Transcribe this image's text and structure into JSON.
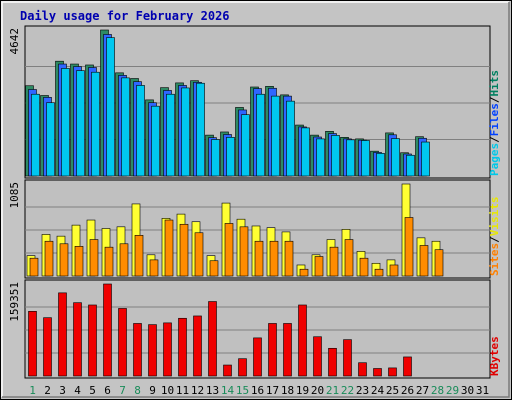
{
  "chart_data": {
    "type": "bar",
    "title": "Daily usage for February 2026",
    "days": [
      "1",
      "2",
      "3",
      "4",
      "5",
      "6",
      "7",
      "8",
      "9",
      "10",
      "11",
      "12",
      "13",
      "14",
      "15",
      "16",
      "17",
      "18",
      "19",
      "20",
      "21",
      "22",
      "23",
      "24",
      "25",
      "26",
      "27",
      "28",
      "29",
      "30",
      "31"
    ],
    "weekend_days": [
      "1",
      "7",
      "8",
      "14",
      "15",
      "21",
      "22",
      "28",
      "29"
    ],
    "panels": [
      {
        "id": "top",
        "max_label": "4642",
        "ylim": [
          0,
          4642
        ],
        "legend": [
          {
            "text": "Pages",
            "color": "#00c8e8"
          },
          {
            "text": "/",
            "color": "#000000"
          },
          {
            "text": "Files",
            "color": "#0040ff"
          },
          {
            "text": "/",
            "color": "#000000"
          },
          {
            "text": "Hits",
            "color": "#008060"
          }
        ],
        "series": [
          {
            "name": "Hits",
            "color": "#2e8b64",
            "values": [
              2870,
              2560,
              3650,
              3560,
              3530,
              4642,
              3280,
              3100,
              2420,
              2810,
              2960,
              3030,
              1300,
              1400,
              2180,
              2830,
              2850,
              2580,
              1620,
              1300,
              1420,
              1230,
              1180,
              790,
              1370,
              740,
              1250,
              null,
              null,
              null,
              null
            ]
          },
          {
            "name": "Files",
            "color": "#2f66ff",
            "values": [
              2750,
              2500,
              3560,
              3480,
              3450,
              4500,
              3200,
              3000,
              2330,
              2720,
              2880,
              2980,
              1220,
              1320,
              2100,
              2780,
              2790,
              2540,
              1560,
              1240,
              1350,
              1180,
              1140,
              750,
              1310,
              700,
              1200,
              null,
              null,
              null,
              null
            ]
          },
          {
            "name": "Pages",
            "color": "#00c8f0",
            "values": [
              2600,
              2330,
              3420,
              3350,
              3300,
              4400,
              3120,
              2880,
              2220,
              2600,
              2800,
              2950,
              1160,
              1230,
              1950,
              2600,
              2540,
              2380,
              1530,
              1180,
              1290,
              1150,
              1130,
              720,
              1190,
              660,
              1080,
              null,
              null,
              null,
              null
            ]
          }
        ]
      },
      {
        "id": "middle",
        "max_label": "1085",
        "ylim": [
          0,
          1085
        ],
        "legend": [
          {
            "text": "Sites",
            "color": "#ff8000"
          },
          {
            "text": "/",
            "color": "#000000"
          },
          {
            "text": "Visits",
            "color": "#e8e800"
          }
        ],
        "series": [
          {
            "name": "Visits",
            "color": "#ffff33",
            "values": [
              240,
              490,
              470,
              600,
              660,
              560,
              580,
              850,
              250,
              680,
              730,
              640,
              240,
              860,
              670,
              590,
              570,
              520,
              130,
              250,
              430,
              550,
              290,
              150,
              190,
              1085,
              450,
              410,
              null,
              null,
              null
            ]
          },
          {
            "name": "Sites",
            "color": "#ff8c00",
            "values": [
              210,
              410,
              380,
              350,
              430,
              340,
              380,
              480,
              190,
              660,
              610,
              510,
              180,
              620,
              580,
              410,
              410,
              410,
              80,
              230,
              340,
              430,
              210,
              80,
              130,
              690,
              360,
              310,
              null,
              null,
              null
            ]
          }
        ]
      },
      {
        "id": "bottom",
        "max_label": "159351",
        "ylim": [
          0,
          159351
        ],
        "legend": [
          {
            "text": "KBytes",
            "color": "#e00000"
          }
        ],
        "series": [
          {
            "name": "KBytes",
            "color": "#f00000",
            "values": [
              112000,
              101000,
              144000,
              127000,
              123000,
              159351,
              117000,
              91000,
              89000,
              92000,
              100000,
              104000,
              129000,
              19000,
              30000,
              66000,
              91000,
              91000,
              123000,
              68000,
              48000,
              63000,
              23000,
              13000,
              14000,
              33000,
              null,
              null,
              null,
              null,
              null
            ]
          }
        ]
      }
    ]
  }
}
